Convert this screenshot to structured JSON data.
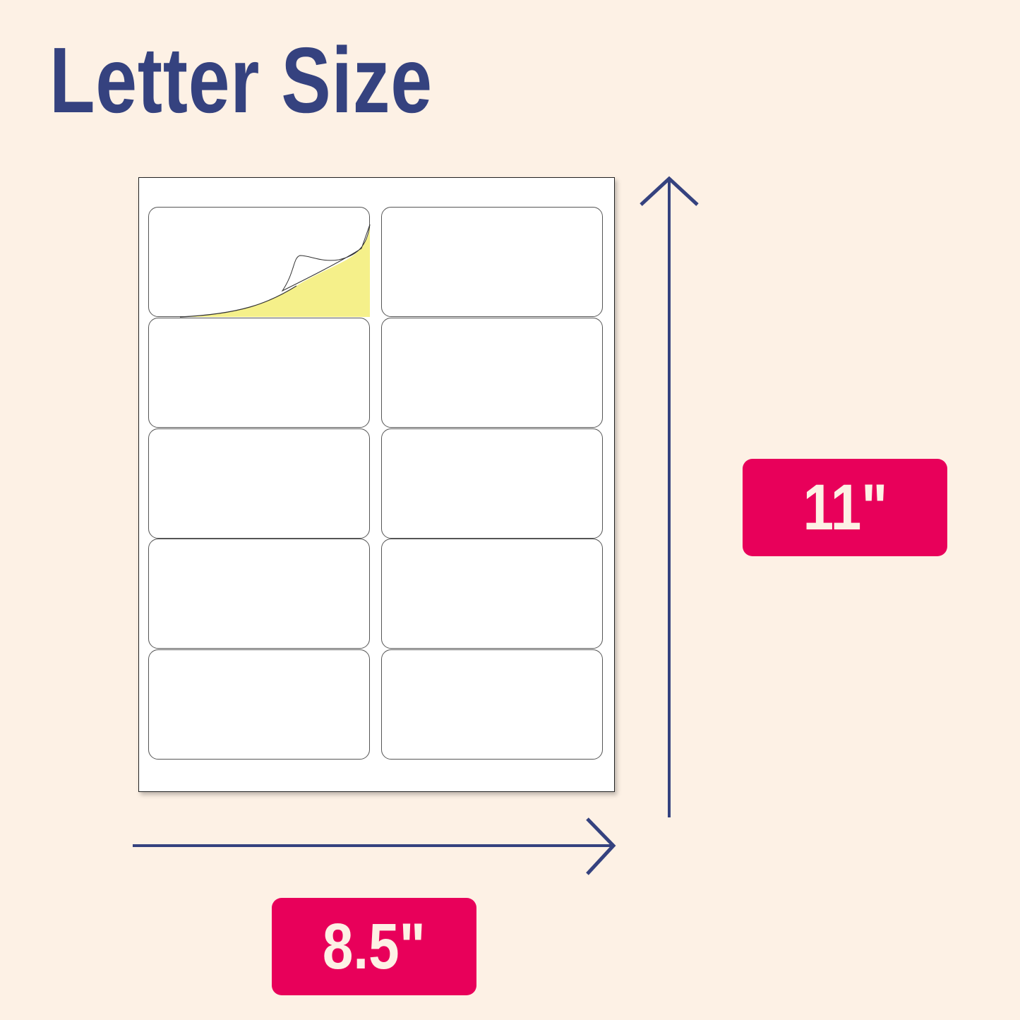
{
  "title": "Letter Size",
  "sheet": {
    "columns": 2,
    "rows": 5,
    "peeled_label": 1
  },
  "height_label": "11\"",
  "width_label": "8.5\"",
  "colors": {
    "background": "#fdf1e5",
    "title": "#35427f",
    "badge": "#e8005a",
    "arrow": "#35427f",
    "backing": "#f5f08a"
  }
}
